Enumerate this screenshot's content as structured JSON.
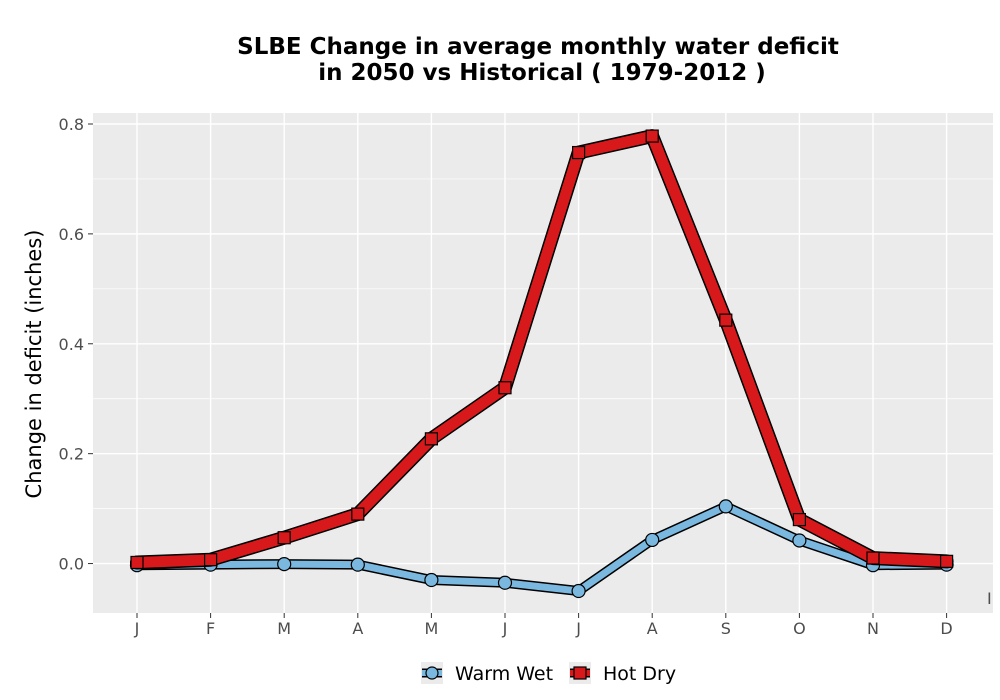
{
  "chart_data": {
    "type": "line",
    "title_lines": [
      "SLBE  Change in average monthly water deficit",
      "in 2050 vs Historical ( 1979-2012 )"
    ],
    "xlabel": "",
    "ylabel": "Change in deficit (inches)",
    "categories": [
      "J",
      "F",
      "M",
      "A",
      "M",
      "J",
      "J",
      "A",
      "S",
      "O",
      "N",
      "D"
    ],
    "yticks": [
      0.0,
      0.2,
      0.4,
      0.6,
      0.8
    ],
    "ytick_labels": [
      "0.0",
      "0.2",
      "0.4",
      "0.6",
      "0.8"
    ],
    "ylim": [
      -0.09,
      0.82
    ],
    "grid": true,
    "legend_position": "bottom",
    "edge_label": "I",
    "series": [
      {
        "name": "Warm Wet",
        "marker": "circle",
        "color": "#7ab8df",
        "values": [
          -0.003,
          -0.002,
          -0.001,
          -0.002,
          -0.03,
          -0.035,
          -0.05,
          0.043,
          0.104,
          0.042,
          -0.003,
          -0.002
        ]
      },
      {
        "name": "Hot Dry",
        "marker": "square",
        "color": "#d7191c",
        "values": [
          0.002,
          0.007,
          0.047,
          0.09,
          0.227,
          0.32,
          0.748,
          0.778,
          0.443,
          0.08,
          0.01,
          0.004
        ]
      }
    ]
  }
}
